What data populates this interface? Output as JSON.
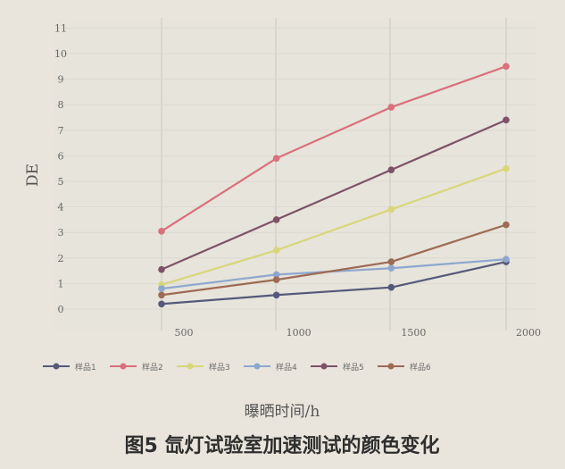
{
  "chart_data": {
    "type": "line",
    "xlabel": "曝晒时间/h",
    "ylabel": "DE",
    "caption": "图5 氙灯试验室加速测试的颜色变化",
    "x": [
      400,
      900,
      1400,
      1900
    ],
    "x_ticks": [
      "500",
      "1000",
      "1500",
      "2000"
    ],
    "y_ticks": [
      "0",
      "1",
      "2",
      "3",
      "4",
      "5",
      "6",
      "7",
      "8",
      "9",
      "10",
      "11"
    ],
    "ylim": [
      0,
      11
    ],
    "grid": true,
    "legend_position": "bottom",
    "series": [
      {
        "name": "样品1",
        "color": "#55597a",
        "values": [
          0.2,
          0.55,
          0.85,
          1.85
        ]
      },
      {
        "name": "样品2",
        "color": "#d9707c",
        "values": [
          3.05,
          5.9,
          7.9,
          9.5
        ]
      },
      {
        "name": "样品3",
        "color": "#d8d67a",
        "values": [
          0.95,
          2.3,
          3.9,
          5.5
        ]
      },
      {
        "name": "样品4",
        "color": "#8ea7cf",
        "values": [
          0.8,
          1.35,
          1.6,
          1.95
        ]
      },
      {
        "name": "样品5",
        "color": "#7d5268",
        "values": [
          1.55,
          3.5,
          5.45,
          7.4
        ]
      },
      {
        "name": "样品6",
        "color": "#9e6a55",
        "values": [
          0.55,
          1.15,
          1.85,
          3.3
        ]
      }
    ]
  }
}
